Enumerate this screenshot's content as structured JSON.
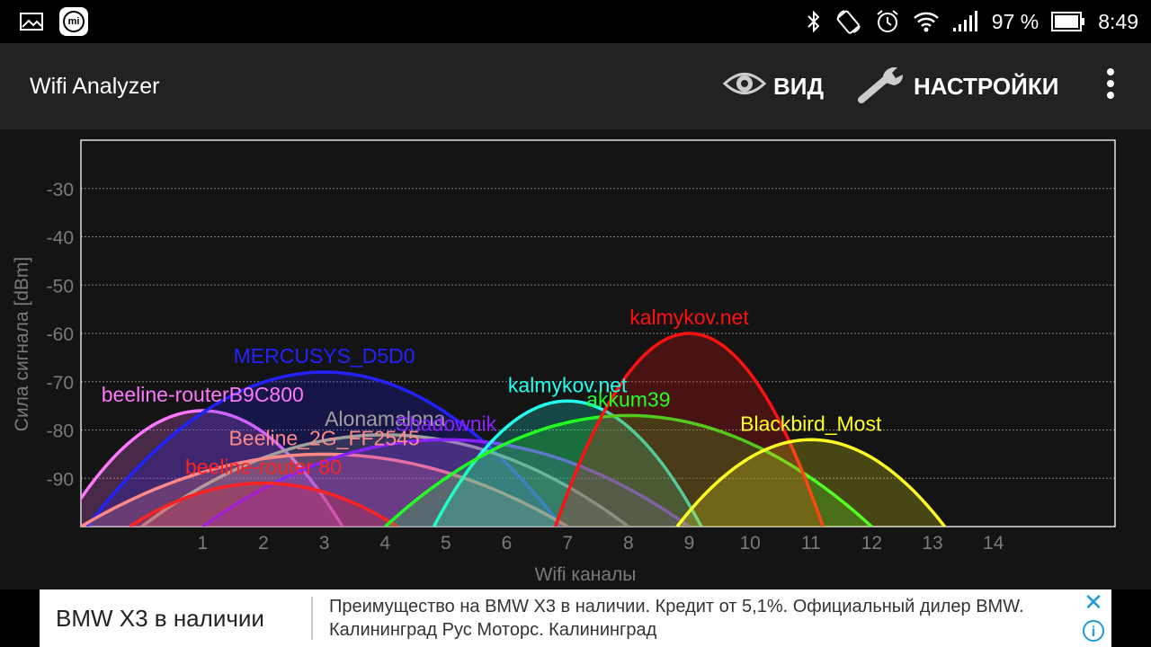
{
  "status_bar": {
    "battery_percent": "97 %",
    "time": "8:49",
    "icons": [
      "gallery-icon",
      "mi-icon",
      "bluetooth-icon",
      "auto-rotate-icon",
      "alarm-icon",
      "wifi-icon",
      "signal-icon",
      "battery-icon"
    ]
  },
  "action_bar": {
    "title": "Wifi Analyzer",
    "view_label": "ВИД",
    "settings_label": "НАСТРОЙКИ",
    "icons": [
      "eye-icon",
      "wrench-icon",
      "more-vert-icon"
    ]
  },
  "colors": {
    "background": "#141414",
    "action_bar": "#222222",
    "axis_text": "#7a7a7a",
    "grid": "#7f7f7f"
  },
  "chart_data": {
    "type": "area",
    "xlabel": "Wifi каналы",
    "ylabel": "Сила сигнала [dBm]",
    "xlim": [
      -1,
      16
    ],
    "ylim": [
      -100,
      -20
    ],
    "x_ticks": [
      1,
      2,
      3,
      4,
      5,
      6,
      7,
      8,
      9,
      10,
      11,
      12,
      13,
      14
    ],
    "y_ticks": [
      -30,
      -40,
      -50,
      -60,
      -70,
      -80,
      -90
    ],
    "grid": "horizontal dotted",
    "series": [
      {
        "name": "beeline-routerB9C800",
        "channel": 1,
        "peak": -76,
        "color": "#ff77ff",
        "halfwidth": 2.3
      },
      {
        "name": "MERCUSYS_D5D0",
        "channel": 3,
        "peak": -68,
        "color": "#2222ff",
        "halfwidth": 3.9
      },
      {
        "name": "Alonamalona",
        "channel": 4,
        "peak": -81,
        "color": "#a0a0a0",
        "halfwidth": 4.0
      },
      {
        "name": "Beeline_2G_FF2545",
        "channel": 3,
        "peak": -85,
        "color": "#ff8888",
        "halfwidth": 4.0
      },
      {
        "name": "Shadownik",
        "channel": 5,
        "peak": -82,
        "color": "#8822ff",
        "halfwidth": 4.0
      },
      {
        "name": "beeline-router 80",
        "channel": 2,
        "peak": -91,
        "color": "#ff2222",
        "halfwidth": 2.2
      },
      {
        "name": "kalmykov.net",
        "channel": 7,
        "peak": -74,
        "color": "#22ffee",
        "halfwidth": 2.2
      },
      {
        "name": "akkum39",
        "channel": 8,
        "peak": -77,
        "color": "#22ff22",
        "halfwidth": 4.0
      },
      {
        "name": "kalmykov.net",
        "channel": 9,
        "peak": -60,
        "color": "#ff1111",
        "halfwidth": 2.2
      },
      {
        "name": "Blackbird_Most",
        "channel": 11,
        "peak": -82,
        "color": "#ffff22",
        "halfwidth": 2.2
      }
    ]
  },
  "ad": {
    "title": "BMW X3 в наличии",
    "description": "Преимущество на BMW X3 в наличии. Кредит от 5,1%. Официальный дилер BMW. Калининград Рус Моторс. Калининград",
    "close_icon": "close-icon",
    "info_icon": "info-icon"
  }
}
